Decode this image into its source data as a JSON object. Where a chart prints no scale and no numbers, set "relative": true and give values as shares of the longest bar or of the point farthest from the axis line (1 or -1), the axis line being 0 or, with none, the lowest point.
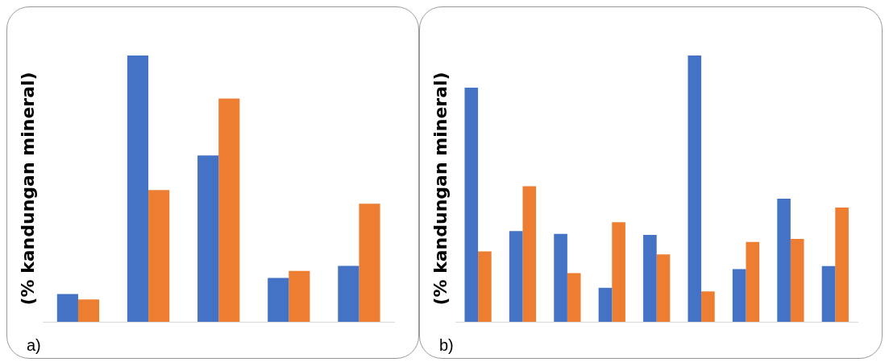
{
  "chart_data": [
    {
      "type": "bar",
      "relative": true,
      "ylabel": "(% kandungan mineral)",
      "annotations": [
        "a)"
      ],
      "categories": [
        null,
        null,
        null,
        null,
        null
      ],
      "grid": false,
      "legend": false,
      "series": [
        {
          "color": "#4472c4",
          "values": [
            0.104,
            1,
            0.625,
            0.165,
            0.21
          ]
        },
        {
          "color": "#ed7d31",
          "values": [
            0.084,
            0.495,
            0.838,
            0.191,
            0.443
          ]
        }
      ]
    },
    {
      "type": "bar",
      "relative": true,
      "ylabel": "(% kandungan mineral)",
      "annotations": [
        "b)"
      ],
      "categories": [
        null,
        null,
        null,
        null,
        null,
        null,
        null,
        null,
        null
      ],
      "grid": false,
      "legend": false,
      "series": [
        {
          "color": "#4472c4",
          "values": [
            0.879,
            0.341,
            0.33,
            0.128,
            0.326,
            1,
            0.198,
            0.462,
            0.209
          ]
        },
        {
          "color": "#ed7d31",
          "values": [
            0.264,
            0.509,
            0.183,
            0.374,
            0.253,
            0.114,
            0.3,
            0.311,
            0.429
          ]
        }
      ]
    }
  ]
}
